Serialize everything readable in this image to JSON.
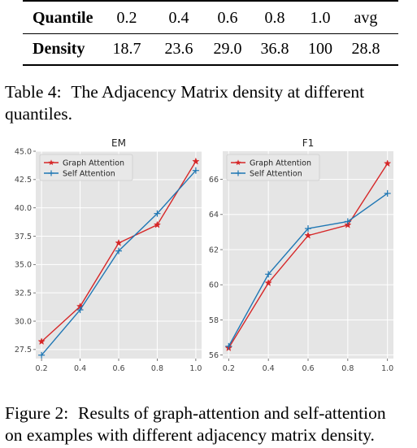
{
  "table": {
    "row_quantile": {
      "header": "Quantile",
      "values": [
        "0.2",
        "0.4",
        "0.6",
        "0.8",
        "1.0",
        "avg"
      ]
    },
    "row_density": {
      "header": "Density",
      "values": [
        "18.7",
        "23.6",
        "29.0",
        "36.8",
        "100",
        "28.8"
      ]
    },
    "caption_label": "Table 4:",
    "caption_line1": "The Adjacency Matrix density at different",
    "caption_line2": "quantiles."
  },
  "figure": {
    "caption_label": "Figure 2:",
    "caption_line1": "Results of graph-attention and self-attention",
    "caption_line2": "on examples with different adjacency matrix density."
  },
  "chart_data": [
    {
      "type": "line",
      "title": "EM",
      "xlabel": "",
      "ylabel": "",
      "x": [
        0.2,
        0.4,
        0.6,
        0.8,
        1.0
      ],
      "xticks": [
        "0.2",
        "0.4",
        "0.6",
        "0.8",
        "1.0"
      ],
      "yticks": [
        "27.5",
        "30.0",
        "32.5",
        "35.0",
        "37.5",
        "40.0",
        "42.5",
        "45.0"
      ],
      "ylim": [
        26.7,
        45.0
      ],
      "grid": true,
      "legend": "top-left",
      "series": [
        {
          "name": "Graph Attention",
          "color": "#d62728",
          "marker": "star",
          "values": [
            28.2,
            31.3,
            36.9,
            38.5,
            44.1
          ]
        },
        {
          "name": "Self Attention",
          "color": "#1f77b4",
          "marker": "plus",
          "values": [
            27.0,
            31.0,
            36.2,
            39.5,
            43.3
          ]
        }
      ]
    },
    {
      "type": "line",
      "title": "F1",
      "xlabel": "",
      "ylabel": "",
      "x": [
        0.2,
        0.4,
        0.6,
        0.8,
        1.0
      ],
      "xticks": [
        "0.2",
        "0.4",
        "0.6",
        "0.8",
        "1.0"
      ],
      "yticks": [
        "56",
        "58",
        "60",
        "62",
        "64",
        "66"
      ],
      "ylim": [
        55.8,
        67.6
      ],
      "grid": true,
      "legend": "top-left",
      "series": [
        {
          "name": "Graph Attention",
          "color": "#d62728",
          "marker": "star",
          "values": [
            56.4,
            60.1,
            62.8,
            63.4,
            66.9
          ]
        },
        {
          "name": "Self Attention",
          "color": "#1f77b4",
          "marker": "plus",
          "values": [
            56.5,
            60.6,
            63.2,
            63.6,
            65.2
          ]
        }
      ]
    }
  ]
}
